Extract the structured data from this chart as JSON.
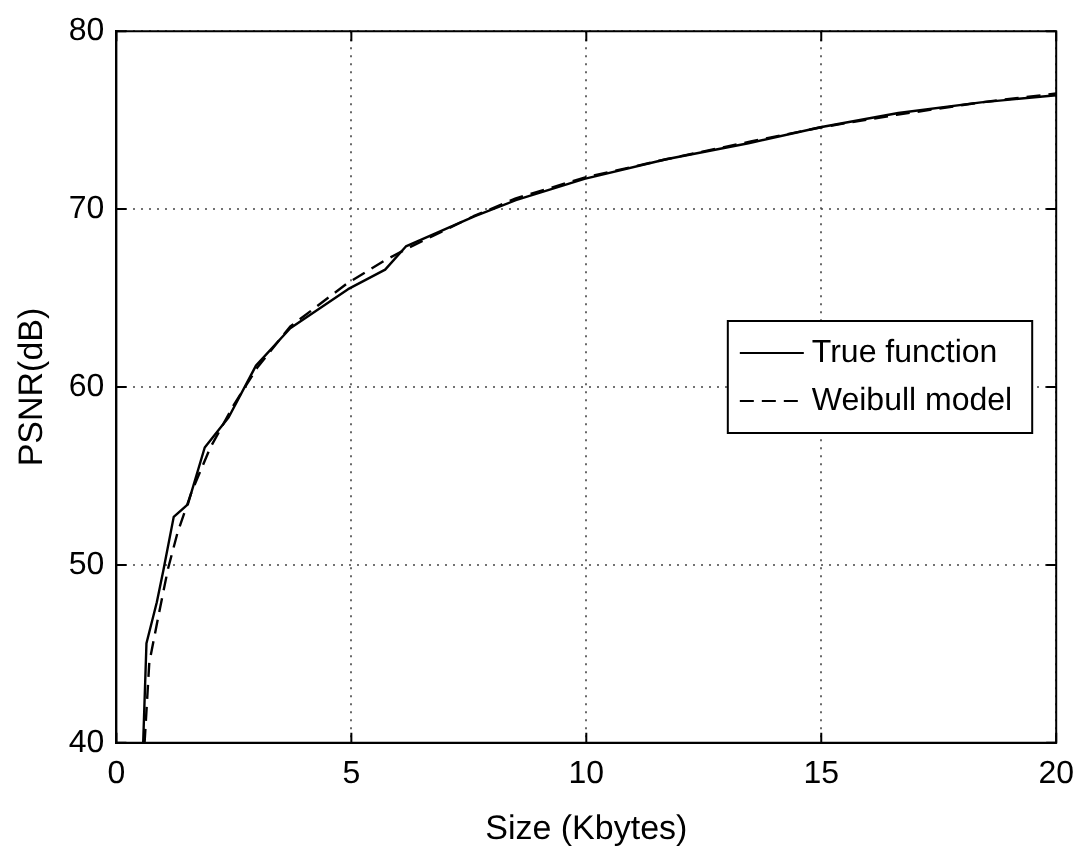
{
  "chart_data": {
    "type": "line",
    "xlabel": "Size (Kbytes)",
    "ylabel": "PSNR(dB)",
    "xlim": [
      0,
      20
    ],
    "xticks": [
      0,
      5,
      10,
      15,
      20
    ],
    "ylim": [
      40,
      80
    ],
    "yticks": [
      40,
      50,
      60,
      70,
      80
    ],
    "grid": true,
    "legend": "right",
    "series": [
      {
        "name": "True function",
        "color": "#000000",
        "line_style": "solid",
        "x": [
          0.57,
          0.64,
          0.86,
          1.0,
          1.22,
          1.52,
          1.88,
          2.39,
          2.97,
          3.7,
          4.93,
          5.72,
          6.16,
          7.63,
          8.5,
          9.96,
          11.7,
          13.45,
          14.98,
          16.64,
          18.4,
          20
        ],
        "values": [
          40,
          45.6,
          47.9,
          49.7,
          52.7,
          53.4,
          56.6,
          58.3,
          61.2,
          63.3,
          65.5,
          66.6,
          67.9,
          69.6,
          70.5,
          71.7,
          72.8,
          73.7,
          74.6,
          75.4,
          76.0,
          76.4
        ]
      },
      {
        "name": "Weibull model",
        "color": "#000000",
        "line_style": "dashed",
        "x": [
          0.6,
          0.7,
          0.9,
          1.1,
          1.3,
          1.6,
          2.0,
          2.5,
          3.0,
          3.7,
          4.9,
          5.7,
          6.2,
          7.6,
          8.5,
          10,
          11.7,
          13.5,
          15,
          16.6,
          18.4,
          20
        ],
        "values": [
          40,
          44.5,
          47.2,
          49.8,
          51.8,
          54.1,
          56.6,
          59.0,
          61.1,
          63.4,
          65.8,
          67.1,
          67.8,
          69.6,
          70.6,
          71.8,
          72.8,
          73.8,
          74.6,
          75.3,
          76.0,
          76.5
        ]
      }
    ]
  }
}
